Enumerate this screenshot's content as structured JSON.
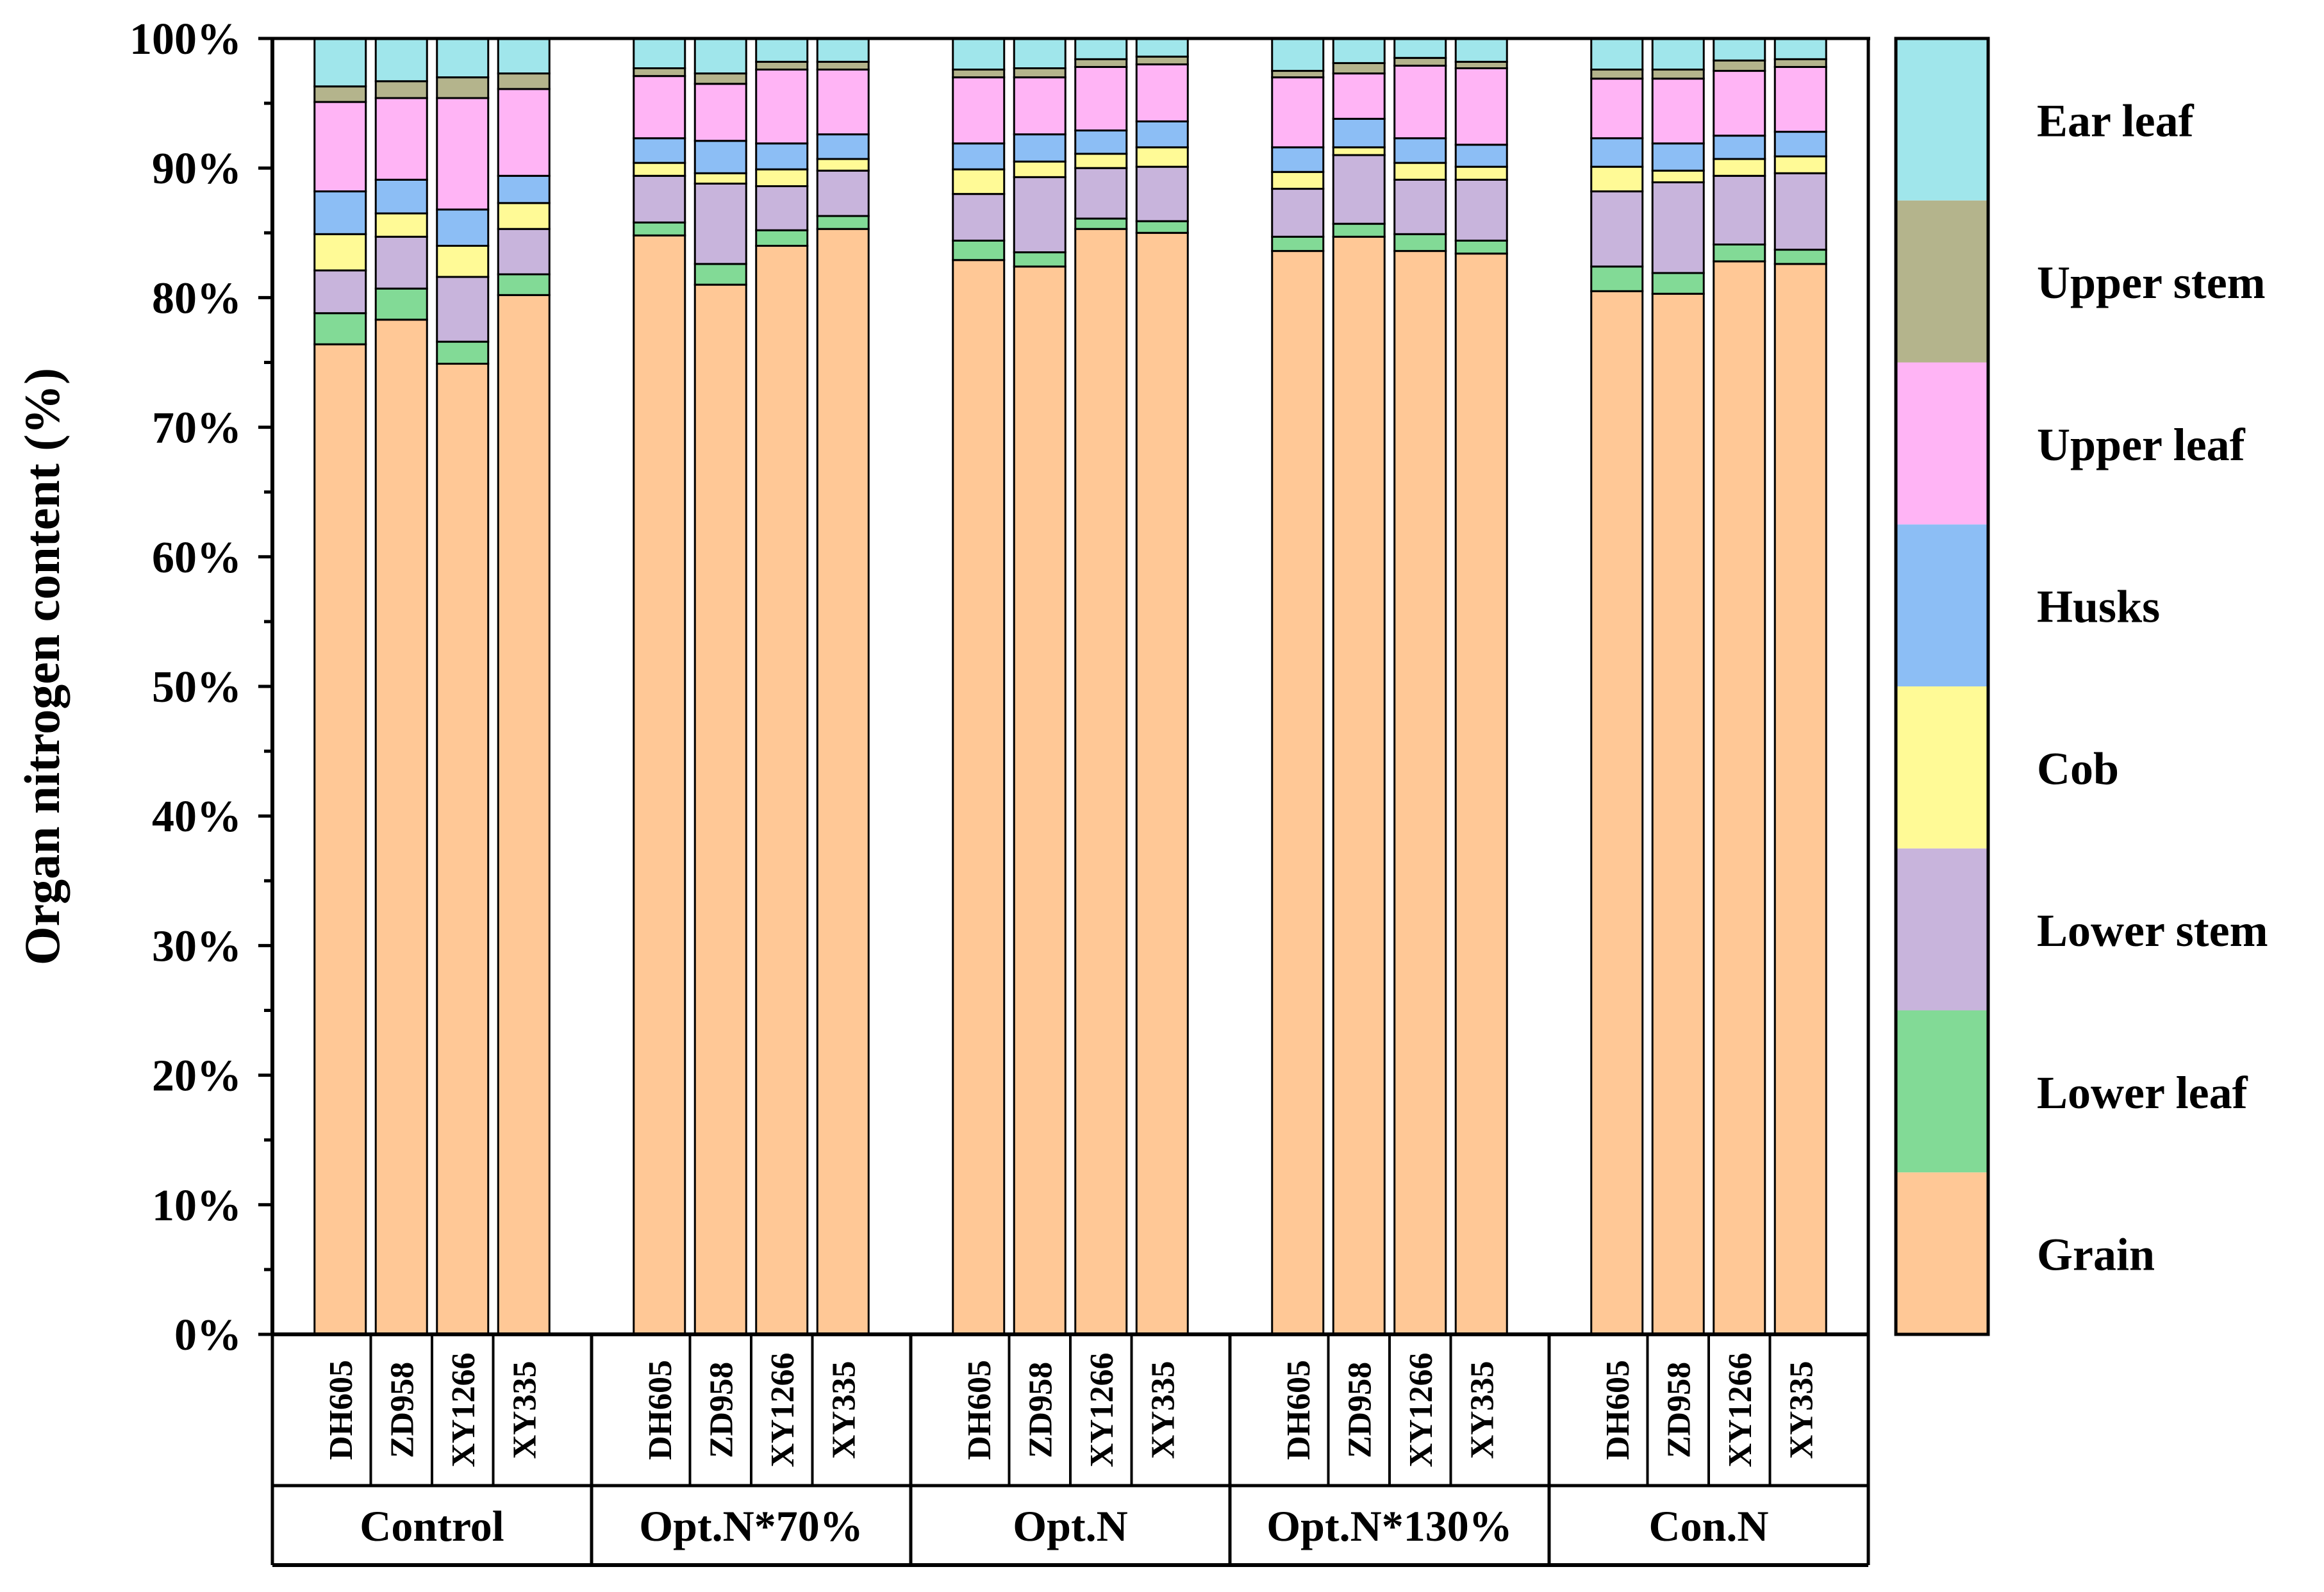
{
  "chart_data": {
    "type": "bar",
    "stacked": true,
    "ylabel": "Organ nitrogen content (%)",
    "xlabel": "",
    "ylim": [
      0,
      100
    ],
    "yticks": [
      "0%",
      "10%",
      "20%",
      "30%",
      "40%",
      "50%",
      "60%",
      "70%",
      "80%",
      "90%",
      "100%"
    ],
    "grid": false,
    "legend_position": "right",
    "groups": [
      {
        "label": "Control",
        "varieties": [
          "DH605",
          "ZD958",
          "XY1266",
          "XY335"
        ]
      },
      {
        "label": "Opt.N*70%",
        "varieties": [
          "DH605",
          "ZD958",
          "XY1266",
          "XY335"
        ]
      },
      {
        "label": "Opt.N",
        "varieties": [
          "DH605",
          "ZD958",
          "XY1266",
          "XY335"
        ]
      },
      {
        "label": "Opt.N*130%",
        "varieties": [
          "DH605",
          "ZD958",
          "XY1266",
          "XY335"
        ]
      },
      {
        "label": "Con.N",
        "varieties": [
          "DH605",
          "ZD958",
          "XY1266",
          "XY335"
        ]
      }
    ],
    "series": [
      {
        "name": "Grain",
        "color": "#FFC896",
        "values": [
          76.4,
          78.3,
          74.9,
          80.2,
          84.8,
          81.0,
          84.0,
          85.3,
          82.9,
          82.4,
          85.3,
          85.0,
          83.6,
          84.7,
          83.6,
          83.4,
          80.5,
          80.3,
          82.8,
          82.6
        ]
      },
      {
        "name": "Lower leaf",
        "color": "#82DA96",
        "values": [
          2.4,
          2.4,
          1.7,
          1.6,
          1.0,
          1.6,
          1.2,
          1.0,
          1.5,
          1.1,
          0.8,
          0.9,
          1.1,
          1.0,
          1.3,
          1.0,
          1.9,
          1.6,
          1.3,
          1.1
        ]
      },
      {
        "name": "Lower stem",
        "color": "#C8B4DC",
        "values": [
          3.3,
          4.0,
          5.0,
          3.5,
          3.6,
          6.2,
          3.4,
          3.5,
          3.6,
          5.8,
          3.9,
          4.2,
          3.7,
          5.3,
          4.2,
          4.7,
          5.8,
          7.0,
          5.3,
          5.9
        ]
      },
      {
        "name": "Cob",
        "color": "#FFFA96",
        "values": [
          2.8,
          1.8,
          2.4,
          2.0,
          1.0,
          0.8,
          1.3,
          0.9,
          1.9,
          1.2,
          1.1,
          1.5,
          1.3,
          0.6,
          1.3,
          1.0,
          1.9,
          0.9,
          1.3,
          1.3
        ]
      },
      {
        "name": "Husks",
        "color": "#8CBEF5",
        "values": [
          3.3,
          2.6,
          2.8,
          2.1,
          1.9,
          2.5,
          2.0,
          1.9,
          2.0,
          2.1,
          1.8,
          2.0,
          1.9,
          2.2,
          1.9,
          1.7,
          2.2,
          2.1,
          1.8,
          1.9
        ]
      },
      {
        "name": "Upper leaf",
        "color": "#FFB4F5",
        "values": [
          6.9,
          6.3,
          8.6,
          6.7,
          4.8,
          4.4,
          5.7,
          5.0,
          5.1,
          4.4,
          4.9,
          4.4,
          5.4,
          3.5,
          5.6,
          5.9,
          4.6,
          5.0,
          5.0,
          5.0
        ]
      },
      {
        "name": "Upper stem",
        "color": "#B4B48C",
        "values": [
          1.2,
          1.3,
          1.6,
          1.2,
          0.6,
          0.8,
          0.6,
          0.6,
          0.6,
          0.7,
          0.6,
          0.6,
          0.5,
          0.8,
          0.6,
          0.5,
          0.7,
          0.7,
          0.8,
          0.6
        ]
      },
      {
        "name": "Ear leaf",
        "color": "#A0E6EB",
        "values": [
          3.7,
          3.3,
          3.0,
          2.7,
          2.3,
          2.7,
          1.8,
          1.8,
          2.4,
          2.3,
          1.6,
          1.4,
          2.5,
          1.9,
          1.5,
          1.8,
          2.4,
          2.4,
          1.7,
          1.6
        ]
      }
    ]
  }
}
